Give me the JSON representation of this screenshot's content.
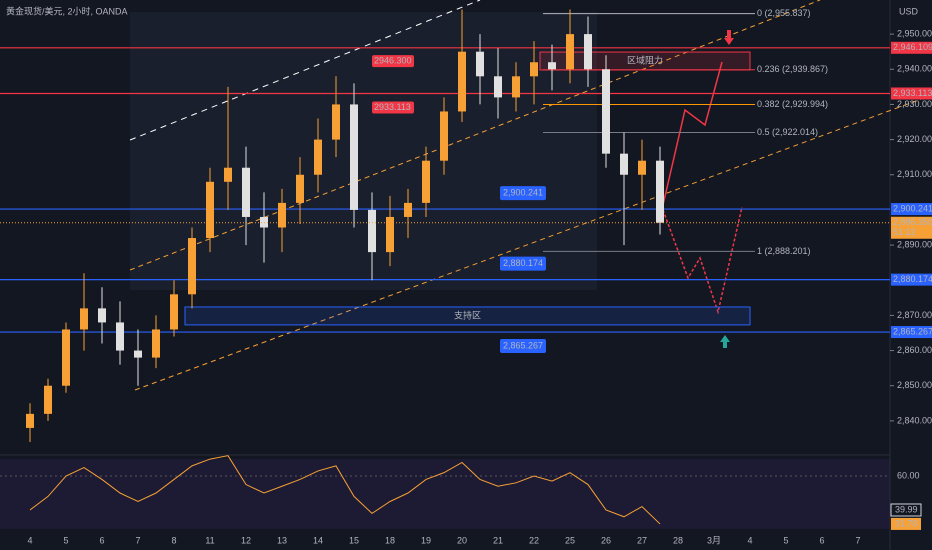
{
  "chart_data": {
    "type": "candlestick",
    "title": "黄金现货/美元, 2小时, OANDA",
    "currency": "USD",
    "categories": [
      "4",
      "5",
      "6",
      "7",
      "8",
      "11",
      "12",
      "13",
      "14",
      "15",
      "18",
      "19",
      "20",
      "21",
      "22",
      "25",
      "26",
      "27",
      "28",
      "3月",
      "4",
      "5",
      "6",
      "7"
    ],
    "ylim": [
      2830.3,
      2959.7
    ],
    "yticks": [
      {
        "value": 2950,
        "label": "2,950.000"
      },
      {
        "value": 2940,
        "label": "2,940.000"
      },
      {
        "value": 2930,
        "label": "2,930.000"
      },
      {
        "value": 2920,
        "label": "2,920.000"
      },
      {
        "value": 2910,
        "label": "2,910.000"
      },
      {
        "value": 2890,
        "label": "2,890.000"
      },
      {
        "value": 2870,
        "label": "2,870.000"
      },
      {
        "value": 2860,
        "label": "2,860.000"
      },
      {
        "value": 2850,
        "label": "2,850.000"
      },
      {
        "value": 2840,
        "label": "2,840.000"
      }
    ],
    "up_color": "#f7a035",
    "down_color": "#e0e0e0",
    "candles": {
      "t": [
        0,
        0.5,
        1,
        1.5,
        2,
        2.5,
        3,
        3.5,
        4,
        4.5,
        5,
        5.5,
        6,
        6.5,
        7,
        7.5,
        8,
        8.5,
        9,
        9.5,
        10,
        10.5,
        11,
        11.5,
        12,
        12.5,
        13,
        13.5,
        14,
        14.5,
        15,
        15.5,
        16,
        16.5,
        17,
        17.5
      ],
      "open": [
        2838,
        2842,
        2850,
        2866,
        2872,
        2868,
        2860,
        2858,
        2866,
        2876,
        2892,
        2908,
        2912,
        2898,
        2895,
        2902,
        2910,
        2920,
        2930,
        2900,
        2888,
        2898,
        2902,
        2914,
        2928,
        2945,
        2938,
        2932,
        2938,
        2942,
        2940,
        2950,
        2940,
        2916,
        2910,
        2914
      ],
      "high": [
        2845,
        2852,
        2868,
        2882,
        2878,
        2874,
        2866,
        2870,
        2880,
        2895,
        2912,
        2935,
        2918,
        2905,
        2906,
        2915,
        2926,
        2938,
        2936,
        2905,
        2904,
        2906,
        2918,
        2932,
        2957,
        2950,
        2946,
        2942,
        2948,
        2947,
        2957,
        2955,
        2944,
        2922,
        2920,
        2918
      ],
      "low": [
        2834,
        2840,
        2848,
        2860,
        2862,
        2856,
        2850,
        2855,
        2864,
        2872,
        2888,
        2900,
        2890,
        2885,
        2888,
        2896,
        2905,
        2915,
        2895,
        2880,
        2884,
        2892,
        2898,
        2910,
        2925,
        2930,
        2926,
        2928,
        2930,
        2934,
        2936,
        2935,
        2912,
        2890,
        2900,
        2893
      ],
      "close": [
        2842,
        2850,
        2866,
        2872,
        2868,
        2860,
        2858,
        2866,
        2876,
        2892,
        2908,
        2912,
        2898,
        2895,
        2902,
        2910,
        2920,
        2930,
        2900,
        2888,
        2898,
        2902,
        2914,
        2928,
        2945,
        2938,
        2932,
        2938,
        2942,
        2940,
        2950,
        2940,
        2916,
        2910,
        2914,
        2896.35
      ]
    },
    "levels": [
      {
        "value": 2946.109,
        "label": "2,946.109",
        "color": "#f23645"
      },
      {
        "value": 2933.113,
        "label": "2,933.113",
        "color": "#f23645"
      },
      {
        "value": 2900.241,
        "label": "2,900.241",
        "color": "#2962ff"
      },
      {
        "value": 2880.174,
        "label": "2,880.174",
        "color": "#2962ff"
      },
      {
        "value": 2865.267,
        "label": "2,865.267",
        "color": "#2962ff"
      }
    ],
    "fib": [
      {
        "value": 2955.837,
        "label": "0 (2,955.837)",
        "color": "#b2b5be"
      },
      {
        "value": 2939.867,
        "label": "0.236 (2,939.867)",
        "color": "#f23645"
      },
      {
        "value": 2929.994,
        "label": "0.382 (2,929.994)",
        "color": "#ff9800"
      },
      {
        "value": 2922.014,
        "label": "0.5 (2,922.014)",
        "color": "#787b86"
      },
      {
        "value": 2888.201,
        "label": "1 (2,888.201)",
        "color": "#787b86"
      }
    ],
    "zones": [
      {
        "label": "区域阻力",
        "high": 2944.9,
        "low": 2939.8,
        "color": "#f23645"
      },
      {
        "label": "支持区",
        "high": 2872.4,
        "low": 2867.3,
        "color": "#2962ff"
      }
    ],
    "profile_labels": [
      {
        "value": 2946.3,
        "label": "2946.300"
      },
      {
        "value": 2933.113,
        "label": "2933.113"
      }
    ],
    "last_price": {
      "value": 2896.35,
      "label": "2,896.350",
      "countdown": "51:12"
    },
    "rsi": {
      "ylim": [
        28.2,
        72.4
      ],
      "yticks": [
        {
          "value": 60,
          "label": "60.00"
        }
      ],
      "values": [
        40,
        48,
        60,
        65,
        58,
        50,
        45,
        50,
        58,
        66,
        70,
        72,
        55,
        50,
        54,
        58,
        63,
        66,
        48,
        38,
        45,
        50,
        58,
        62,
        68,
        58,
        54,
        56,
        60,
        57,
        62,
        55,
        40,
        36,
        42,
        31.78
      ],
      "ma_last": 39.99,
      "color": "#f7a035"
    }
  }
}
